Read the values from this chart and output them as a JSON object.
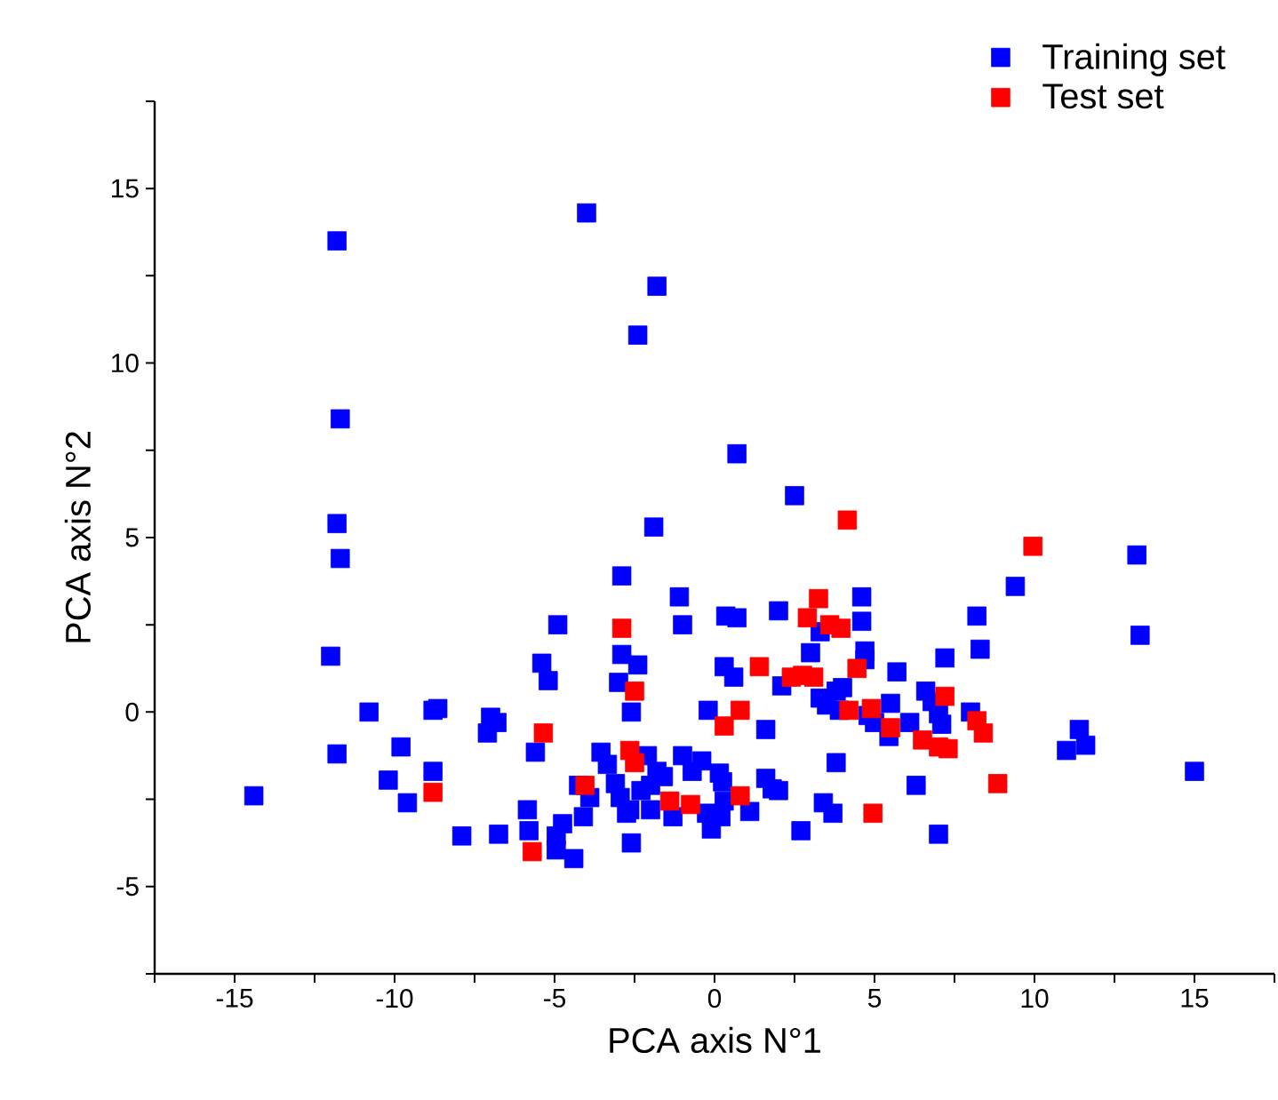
{
  "chart_data": {
    "type": "scatter",
    "xlabel": "PCA axis N°1",
    "ylabel": "PCA axis N°2",
    "xlim": [
      -17.5,
      17.5
    ],
    "ylim": [
      -7.5,
      17.5
    ],
    "xticks": [
      {
        "value": -17.5,
        "label": null
      },
      -15,
      {
        "value": -12.5,
        "label": null
      },
      -10,
      {
        "value": -7.5,
        "label": null
      },
      -5,
      {
        "value": -2.5,
        "label": null
      },
      0,
      {
        "value": 2.5,
        "label": null
      },
      5,
      {
        "value": 7.5,
        "label": null
      },
      10,
      {
        "value": 12.5,
        "label": null
      },
      15,
      {
        "value": 17.5,
        "label": null
      }
    ],
    "yticks": [
      {
        "value": -7.5,
        "label": null
      },
      -5,
      {
        "value": -2.5,
        "label": null
      },
      0,
      {
        "value": 2.5,
        "label": null
      },
      5,
      {
        "value": 7.5,
        "label": null
      },
      10,
      {
        "value": 12.5,
        "label": null
      },
      15,
      {
        "value": 17.5,
        "label": null
      }
    ],
    "legend": "top right",
    "marker": "square",
    "series": [
      {
        "name": "Training set",
        "color": "#0000ff",
        "x": [
          -11.8,
          -4.0,
          -1.8,
          -2.4,
          -11.7,
          -11.8,
          -11.7,
          0.7,
          2.5,
          -1.9,
          13.2,
          9.4,
          13.3,
          -2.9,
          -1.1,
          -1.0,
          -4.9,
          0.35,
          0.7,
          2.0,
          4.6,
          4.6,
          8.2,
          8.3,
          7.2,
          4.7,
          4.7,
          3.0,
          3.3,
          5.7,
          -12.0,
          -5.4,
          -5.2,
          -2.9,
          -2.4,
          -3.0,
          -2.6,
          0.3,
          0.6,
          -0.2,
          2.1,
          3.3,
          3.5,
          3.8,
          4.0,
          3.9,
          4.8,
          5.0,
          5.5,
          5.45,
          6.1,
          6.6,
          6.8,
          7.0,
          7.1,
          8.0,
          11.0,
          11.4,
          11.6,
          15.0,
          6.3,
          7.0,
          3.8,
          3.4,
          3.7,
          2.7,
          1.6,
          1.6,
          1.8,
          2.0,
          1.1,
          0.15,
          0.25,
          0.3,
          -0.25,
          -0.1,
          0.2,
          -0.7,
          -0.4,
          -1.0,
          -1.6,
          -2.0,
          -1.8,
          -2.1,
          -2.3,
          -2.65,
          -3.1,
          -2.95,
          -2.75,
          -2.6,
          -1.3,
          -2.0,
          -3.55,
          -3.35,
          -3.9,
          -4.1,
          -4.25,
          -4.75,
          -4.95,
          -4.95,
          -4.4,
          -5.85,
          -5.8,
          -5.6,
          -7.0,
          -7.1,
          -6.8,
          -6.75,
          -7.9,
          -8.8,
          -8.65,
          -8.8,
          -10.8,
          -9.8,
          -10.2,
          -9.6,
          -11.8,
          -14.4
        ],
        "values": [
          13.5,
          14.3,
          12.2,
          10.8,
          8.4,
          5.4,
          4.4,
          7.4,
          6.2,
          5.3,
          4.5,
          3.6,
          2.2,
          3.9,
          3.3,
          2.5,
          2.5,
          2.75,
          2.7,
          2.9,
          3.3,
          2.6,
          2.75,
          1.8,
          1.55,
          1.75,
          1.5,
          1.7,
          2.3,
          1.15,
          1.6,
          1.4,
          0.9,
          1.65,
          1.35,
          0.85,
          0.0,
          1.3,
          1.0,
          0.05,
          0.75,
          0.4,
          0.2,
          0.6,
          0.7,
          0.05,
          -0.1,
          -0.3,
          0.25,
          -0.7,
          -0.3,
          0.6,
          0.3,
          -0.05,
          -0.35,
          0.0,
          -1.1,
          -0.5,
          -0.95,
          -1.7,
          -2.1,
          -3.5,
          -1.45,
          -2.6,
          -2.9,
          -3.4,
          -0.5,
          -1.9,
          -2.2,
          -2.25,
          -2.85,
          -1.75,
          -2.0,
          -2.55,
          -2.9,
          -3.35,
          -3.0,
          -1.7,
          -1.4,
          -1.25,
          -1.85,
          -2.1,
          -1.7,
          -1.25,
          -2.25,
          -2.8,
          -2.05,
          -2.45,
          -2.9,
          -3.75,
          -3.0,
          -2.8,
          -1.15,
          -1.5,
          -2.45,
          -3.0,
          -2.1,
          -3.2,
          -3.55,
          -3.95,
          -4.2,
          -2.8,
          -3.4,
          -1.15,
          -0.15,
          -0.6,
          -0.3,
          -3.5,
          -3.55,
          0.05,
          0.1,
          -1.7,
          0.0,
          -1.0,
          -1.95,
          -2.6,
          -1.2,
          -2.4
        ]
      },
      {
        "name": "Test set",
        "color": "#ff0000",
        "x": [
          4.15,
          9.95,
          3.25,
          2.9,
          3.6,
          3.95,
          -2.9,
          -2.5,
          1.4,
          2.4,
          2.75,
          3.1,
          4.45,
          0.8,
          4.2,
          4.9,
          7.2,
          0.3,
          5.5,
          6.5,
          7.0,
          7.3,
          8.2,
          8.4,
          8.85,
          4.95,
          -5.35,
          -2.65,
          -2.5,
          0.8,
          -1.4,
          -0.75,
          -4.05,
          -8.8,
          -5.7
        ],
        "values": [
          5.5,
          4.75,
          3.25,
          2.7,
          2.5,
          2.4,
          2.4,
          0.6,
          1.3,
          1.0,
          1.05,
          1.0,
          1.25,
          0.05,
          0.05,
          0.1,
          0.45,
          -0.4,
          -0.45,
          -0.8,
          -1.0,
          -1.05,
          -0.25,
          -0.6,
          -2.05,
          -2.9,
          -0.6,
          -1.1,
          -1.45,
          -2.4,
          -2.55,
          -2.65,
          -2.1,
          -2.3,
          -4.0
        ]
      }
    ]
  }
}
